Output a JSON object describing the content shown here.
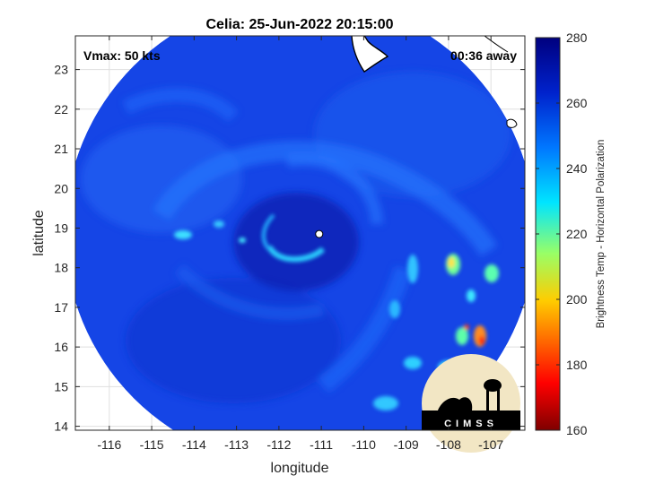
{
  "chart_data": {
    "type": "heatmap",
    "title": "Celia: 25-Jun-2022 20:15:00",
    "xlabel": "longitude",
    "ylabel": "latitude",
    "xlim": [
      -116.8,
      -106.2
    ],
    "ylim": [
      13.9,
      23.85
    ],
    "xticks": [
      -116,
      -115,
      -114,
      -113,
      -112,
      -111,
      -110,
      -109,
      -108,
      -107
    ],
    "yticks": [
      14,
      15,
      16,
      17,
      18,
      19,
      20,
      21,
      22,
      23
    ],
    "grid": true,
    "annotations": {
      "vmax": "Vmax: 50 kts",
      "timing": "00:36 away"
    },
    "storm_center": {
      "lon": -111.05,
      "lat": 18.85
    },
    "swath": {
      "center_lon": -111.5,
      "center_lat": 18.9,
      "radius_deg": 5.55
    },
    "colorbar": {
      "label": "Brightness Temp - Horizontal Polarization",
      "range": [
        160,
        280
      ],
      "ticks": [
        160,
        180,
        200,
        220,
        240,
        260,
        280
      ]
    },
    "field_regions": [
      {
        "description": "eyewall ring",
        "lon": -111.2,
        "lat": 18.5,
        "value": 238
      },
      {
        "description": "rainband west",
        "lon": -114.3,
        "lat": 18.9,
        "value": 236
      },
      {
        "description": "rainband east",
        "lon": -108.6,
        "lat": 17.2,
        "value": 232
      },
      {
        "description": "convection east",
        "lon": -107.5,
        "lat": 17.8,
        "value": 222
      },
      {
        "description": "convection southeast",
        "lon": -107.2,
        "lat": 16.3,
        "value": 195
      },
      {
        "description": "rainband south",
        "lon": -108.8,
        "lat": 15.3,
        "value": 235
      }
    ],
    "logo": "CIMSS"
  }
}
